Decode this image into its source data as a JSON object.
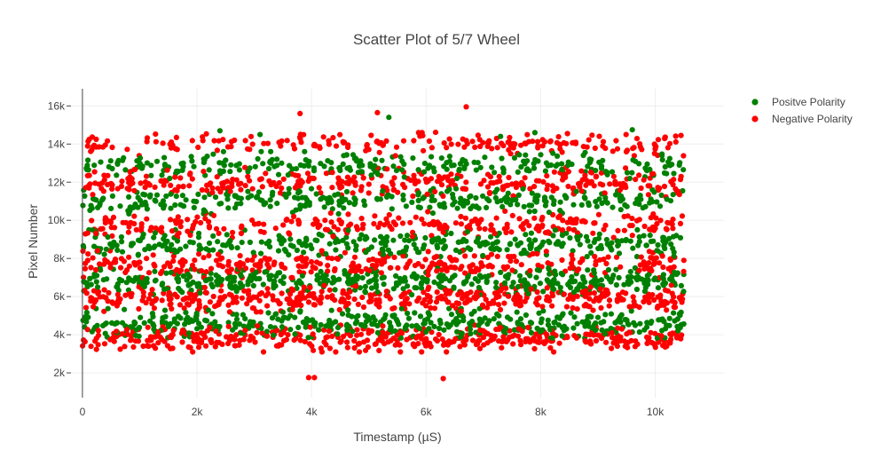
{
  "chart_data": {
    "type": "scatter",
    "title": "Scatter Plot of 5/7 Wheel",
    "xlabel": "Timestamp (µS)",
    "ylabel": "Pixel Number",
    "xlim": [
      -200,
      11200
    ],
    "ylim": [
      700,
      16900
    ],
    "x_ticks": [
      0,
      2000,
      4000,
      6000,
      8000,
      10000
    ],
    "x_tick_labels": [
      "0",
      "2k",
      "4k",
      "6k",
      "8k",
      "10k"
    ],
    "y_ticks": [
      2000,
      4000,
      6000,
      8000,
      10000,
      12000,
      14000,
      16000
    ],
    "y_tick_labels": [
      "2k",
      "4k",
      "6k",
      "8k",
      "10k",
      "12k",
      "14k",
      "16k"
    ],
    "grid": true,
    "legend_position": "top-right",
    "series": [
      {
        "name": "Positve Polarity",
        "color": "#008000",
        "bands": [
          {
            "center": 4600,
            "spread": 350,
            "count": 420
          },
          {
            "center": 6800,
            "spread": 320,
            "count": 430
          },
          {
            "center": 8800,
            "spread": 320,
            "count": 330
          },
          {
            "center": 11000,
            "spread": 300,
            "count": 300
          },
          {
            "center": 12900,
            "spread": 320,
            "count": 260
          }
        ],
        "outliers": [
          {
            "x": 3100,
            "y": 14500
          },
          {
            "x": 5350,
            "y": 15400
          },
          {
            "x": 9600,
            "y": 14750
          },
          {
            "x": 2400,
            "y": 14700
          },
          {
            "x": 7300,
            "y": 14400
          },
          {
            "x": 7900,
            "y": 14600
          }
        ]
      },
      {
        "name": "Negative Polarity",
        "color": "#ff0000",
        "bands": [
          {
            "center": 3800,
            "spread": 320,
            "count": 420
          },
          {
            "center": 5900,
            "spread": 320,
            "count": 430
          },
          {
            "center": 7700,
            "spread": 320,
            "count": 320
          },
          {
            "center": 9800,
            "spread": 320,
            "count": 260
          },
          {
            "center": 12000,
            "spread": 350,
            "count": 320
          },
          {
            "center": 14000,
            "spread": 280,
            "count": 200
          }
        ],
        "outliers": [
          {
            "x": 3950,
            "y": 1750
          },
          {
            "x": 4050,
            "y": 1750
          },
          {
            "x": 6300,
            "y": 1700
          },
          {
            "x": 5150,
            "y": 15650
          },
          {
            "x": 6700,
            "y": 15950
          },
          {
            "x": 3800,
            "y": 15600
          },
          {
            "x": 10450,
            "y": 14450
          },
          {
            "x": 10500,
            "y": 7900
          }
        ]
      }
    ]
  }
}
